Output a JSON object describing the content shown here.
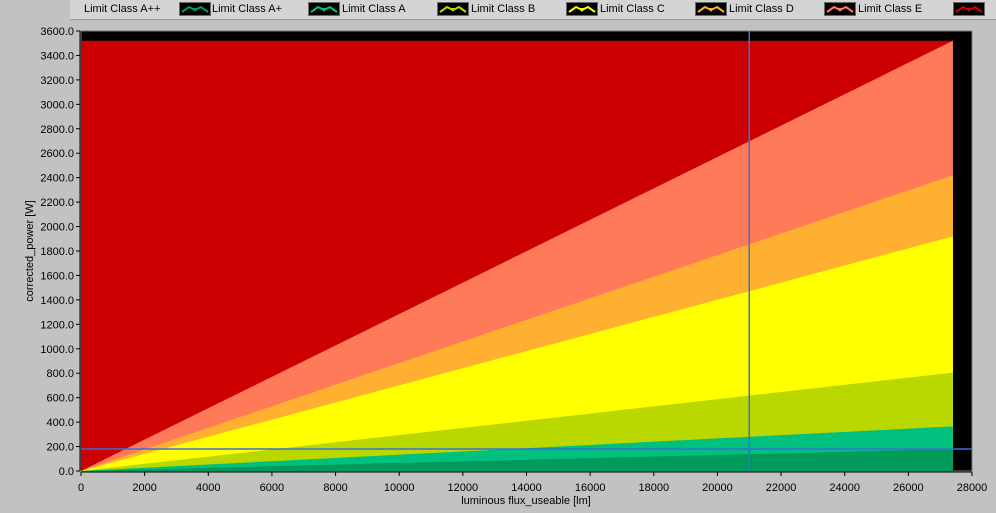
{
  "legend": {
    "items": [
      {
        "label": "Limit Class A++",
        "color": "#009a5a"
      },
      {
        "label": "Limit Class A+",
        "color": "#00c080"
      },
      {
        "label": "Limit Class A",
        "color": "#b8d800"
      },
      {
        "label": "Limit Class B",
        "color": "#ffff00"
      },
      {
        "label": "Limit Class C",
        "color": "#ffb030"
      },
      {
        "label": "Limit Class D",
        "color": "#ff7a58"
      },
      {
        "label": "Limit Class E",
        "color": "#cc0000"
      }
    ]
  },
  "chart_data": {
    "type": "area",
    "xlabel": "luminous flux_useable [lm]",
    "ylabel": "corrected_power [W]",
    "xlim": [
      0,
      28000
    ],
    "ylim": [
      0,
      3600
    ],
    "x_ticks": [
      "0",
      "2000",
      "4000",
      "6000",
      "8000",
      "10000",
      "12000",
      "14000",
      "16000",
      "18000",
      "20000",
      "22000",
      "24000",
      "26000",
      "28000"
    ],
    "y_ticks": [
      "0.0",
      "200.0",
      "400.0",
      "600.0",
      "800.0",
      "1000.0",
      "1200.0",
      "1400.0",
      "1600.0",
      "1800.0",
      "2000.0",
      "2200.0",
      "2400.0",
      "2600.0",
      "2800.0",
      "3000.0",
      "3200.0",
      "3400.0",
      "3600.0"
    ],
    "grid": false,
    "plot_background": "#000000",
    "cursor": {
      "x": 21000,
      "y": 180
    },
    "series": [
      {
        "name": "Limit Class A++",
        "color": "#009a5a",
        "x": [
          0,
          27400
        ],
        "y": [
          0,
          180
        ]
      },
      {
        "name": "Limit Class A+",
        "color": "#00c080",
        "x": [
          0,
          27400
        ],
        "y": [
          0,
          365
        ]
      },
      {
        "name": "Limit Class A",
        "color": "#b8d800",
        "x": [
          0,
          27400
        ],
        "y": [
          0,
          805
        ]
      },
      {
        "name": "Limit Class B",
        "color": "#ffff00",
        "x": [
          0,
          27400
        ],
        "y": [
          0,
          1920
        ]
      },
      {
        "name": "Limit Class C",
        "color": "#ffb030",
        "x": [
          0,
          27400
        ],
        "y": [
          0,
          2420
        ]
      },
      {
        "name": "Limit Class D",
        "color": "#ff7a58",
        "x": [
          0,
          27400
        ],
        "y": [
          0,
          3520
        ]
      },
      {
        "name": "Limit Class E",
        "color": "#cc0000",
        "x": [
          0,
          27400
        ],
        "y": [
          3520,
          3520
        ]
      }
    ]
  }
}
